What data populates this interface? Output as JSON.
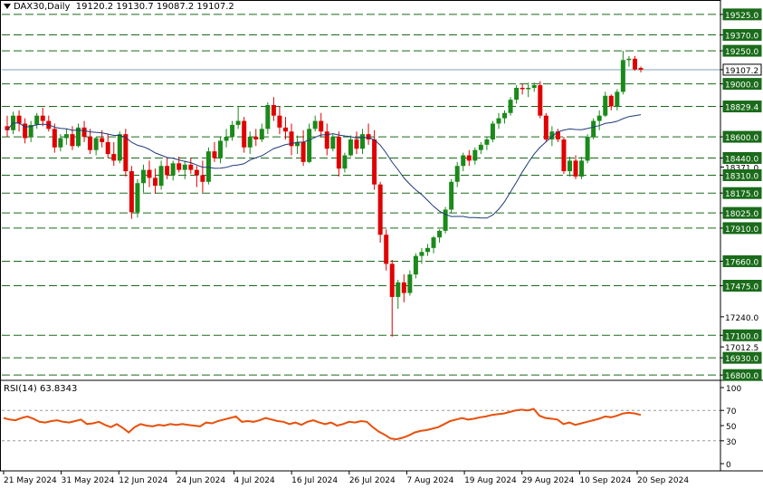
{
  "header": {
    "symbol": "DAX30,Daily",
    "open": "19120.2",
    "high": "19130.7",
    "low": "19087.2",
    "close": "19107.2"
  },
  "rsi_header": {
    "label": "RSI(14)",
    "value": "63.8343"
  },
  "colors": {
    "up": "#1a8a1a",
    "down": "#e00000",
    "ma": "#1f3a7a",
    "rsi": "#e8500a",
    "level_line": "#1a6b1a",
    "price_line": "#7f9fb0",
    "axis": "#000000"
  },
  "chart_data": [
    {
      "type": "candlestick",
      "title": "DAX30,Daily",
      "price_axis": {
        "range": [
          16760,
          19620
        ],
        "ticks": [
          "19525.0",
          "19370.0",
          "19250.0",
          "19107.2",
          "19000.0",
          "18829.4",
          "18600.0",
          "18440.0",
          "18371.0",
          "18310.0",
          "18175.0",
          "18025.0",
          "17910.0",
          "17660.0",
          "17475.0",
          "17240.0",
          "17100.0",
          "17012.5",
          "16930.0",
          "16800.0"
        ],
        "highlighted_ticks": [
          "19525.0",
          "19370.0",
          "19250.0",
          "19000.0",
          "18829.4",
          "18600.0",
          "18440.0",
          "18310.0",
          "18175.0",
          "18025.0",
          "17910.0",
          "17660.0",
          "17475.0",
          "17100.0",
          "16930.0",
          "16800.0"
        ],
        "current_price_tick": "19107.2"
      },
      "levels": [
        19525,
        19370,
        19250,
        19000,
        18829.4,
        18600,
        18440,
        18310,
        18175,
        18025,
        17910,
        17660,
        17475,
        17100,
        16930,
        16800
      ],
      "date_labels": [
        "21 May 2024",
        "31 May 2024",
        "12 Jun 2024",
        "24 Jun 2024",
        "4 Jul 2024",
        "16 Jul 2024",
        "26 Jul 2024",
        "7 Aug 2024",
        "19 Aug 2024",
        "29 Aug 2024",
        "10 Sep 2024",
        "20 Sep 2024"
      ],
      "ohlc": [
        [
          18680,
          18760,
          18600,
          18650
        ],
        [
          18650,
          18790,
          18620,
          18760
        ],
        [
          18760,
          18800,
          18640,
          18700
        ],
        [
          18700,
          18740,
          18550,
          18590
        ],
        [
          18600,
          18720,
          18560,
          18690
        ],
        [
          18690,
          18780,
          18660,
          18760
        ],
        [
          18760,
          18820,
          18680,
          18720
        ],
        [
          18720,
          18760,
          18640,
          18660
        ],
        [
          18660,
          18700,
          18480,
          18520
        ],
        [
          18520,
          18620,
          18490,
          18590
        ],
        [
          18590,
          18660,
          18540,
          18620
        ],
        [
          18620,
          18680,
          18500,
          18530
        ],
        [
          18530,
          18700,
          18520,
          18670
        ],
        [
          18670,
          18720,
          18560,
          18600
        ],
        [
          18600,
          18660,
          18470,
          18500
        ],
        [
          18500,
          18600,
          18460,
          18590
        ],
        [
          18590,
          18650,
          18520,
          18560
        ],
        [
          18560,
          18620,
          18440,
          18470
        ],
        [
          18470,
          18560,
          18380,
          18420
        ],
        [
          18420,
          18640,
          18400,
          18620
        ],
        [
          18620,
          18660,
          18300,
          18340
        ],
        [
          18340,
          18380,
          17980,
          18030
        ],
        [
          18030,
          18280,
          17990,
          18250
        ],
        [
          18250,
          18390,
          18180,
          18350
        ],
        [
          18350,
          18420,
          18220,
          18290
        ],
        [
          18290,
          18360,
          18170,
          18230
        ],
        [
          18230,
          18420,
          18200,
          18380
        ],
        [
          18380,
          18440,
          18280,
          18310
        ],
        [
          18310,
          18420,
          18270,
          18400
        ],
        [
          18400,
          18450,
          18330,
          18350
        ],
        [
          18350,
          18420,
          18280,
          18390
        ],
        [
          18390,
          18440,
          18320,
          18350
        ],
        [
          18350,
          18380,
          18220,
          18310
        ],
        [
          18310,
          18420,
          18180,
          18260
        ],
        [
          18260,
          18520,
          18240,
          18490
        ],
        [
          18490,
          18560,
          18410,
          18440
        ],
        [
          18440,
          18600,
          18400,
          18570
        ],
        [
          18570,
          18660,
          18520,
          18600
        ],
        [
          18600,
          18720,
          18570,
          18690
        ],
        [
          18690,
          18830,
          18660,
          18720
        ],
        [
          18720,
          18750,
          18480,
          18520
        ],
        [
          18520,
          18640,
          18470,
          18600
        ],
        [
          18600,
          18660,
          18530,
          18580
        ],
        [
          18580,
          18700,
          18560,
          18660
        ],
        [
          18660,
          18860,
          18620,
          18840
        ],
        [
          18840,
          18900,
          18720,
          18760
        ],
        [
          18760,
          18830,
          18620,
          18670
        ],
        [
          18670,
          18750,
          18580,
          18640
        ],
        [
          18640,
          18700,
          18460,
          18530
        ],
        [
          18530,
          18610,
          18470,
          18560
        ],
        [
          18560,
          18650,
          18380,
          18410
        ],
        [
          18410,
          18700,
          18400,
          18660
        ],
        [
          18660,
          18760,
          18640,
          18720
        ],
        [
          18720,
          18780,
          18600,
          18640
        ],
        [
          18640,
          18700,
          18460,
          18510
        ],
        [
          18510,
          18620,
          18490,
          18600
        ],
        [
          18600,
          18640,
          18300,
          18360
        ],
        [
          18360,
          18480,
          18330,
          18460
        ],
        [
          18460,
          18610,
          18450,
          18580
        ],
        [
          18580,
          18640,
          18470,
          18510
        ],
        [
          18510,
          18660,
          18470,
          18620
        ],
        [
          18620,
          18700,
          18540,
          18580
        ],
        [
          18580,
          18650,
          18200,
          18240
        ],
        [
          18240,
          18260,
          17800,
          17860
        ],
        [
          17860,
          17900,
          17590,
          17640
        ],
        [
          17640,
          17670,
          17090,
          17390
        ],
        [
          17390,
          17520,
          17300,
          17500
        ],
        [
          17500,
          17560,
          17350,
          17420
        ],
        [
          17420,
          17590,
          17400,
          17560
        ],
        [
          17560,
          17720,
          17530,
          17700
        ],
        [
          17700,
          17760,
          17640,
          17730
        ],
        [
          17730,
          17790,
          17700,
          17760
        ],
        [
          17760,
          17850,
          17720,
          17840
        ],
        [
          17840,
          17900,
          17800,
          17890
        ],
        [
          17890,
          18070,
          17870,
          18050
        ],
        [
          18050,
          18280,
          18020,
          18260
        ],
        [
          18260,
          18410,
          18220,
          18380
        ],
        [
          18380,
          18480,
          18340,
          18460
        ],
        [
          18460,
          18500,
          18380,
          18420
        ],
        [
          18420,
          18520,
          18390,
          18500
        ],
        [
          18500,
          18560,
          18470,
          18540
        ],
        [
          18540,
          18600,
          18500,
          18580
        ],
        [
          18580,
          18720,
          18560,
          18700
        ],
        [
          18700,
          18780,
          18660,
          18740
        ],
        [
          18740,
          18800,
          18700,
          18780
        ],
        [
          18780,
          18900,
          18760,
          18880
        ],
        [
          18880,
          18990,
          18850,
          18970
        ],
        [
          18970,
          19000,
          18920,
          18960
        ],
        [
          18960,
          19010,
          18900,
          18970
        ],
        [
          18970,
          19010,
          18940,
          18990
        ],
        [
          18990,
          19020,
          18740,
          18760
        ],
        [
          18760,
          18780,
          18560,
          18580
        ],
        [
          18580,
          18680,
          18530,
          18640
        ],
        [
          18640,
          18660,
          18560,
          18580
        ],
        [
          18580,
          18600,
          18320,
          18340
        ],
        [
          18340,
          18450,
          18300,
          18420
        ],
        [
          18420,
          18460,
          18280,
          18300
        ],
        [
          18300,
          18450,
          18280,
          18420
        ],
        [
          18420,
          18620,
          18400,
          18600
        ],
        [
          18600,
          18740,
          18580,
          18720
        ],
        [
          18720,
          18800,
          18650,
          18760
        ],
        [
          18760,
          18940,
          18750,
          18910
        ],
        [
          18910,
          18920,
          18800,
          18830
        ],
        [
          18830,
          18960,
          18800,
          18940
        ],
        [
          18940,
          19250,
          18920,
          19180
        ],
        [
          19180,
          19210,
          19130,
          19190
        ],
        [
          19190,
          19210,
          19100,
          19110
        ],
        [
          19120.2,
          19130.7,
          19087.2,
          19107.2
        ]
      ],
      "ma_period": 20
    },
    {
      "type": "line",
      "title": "RSI(14) 63.8343",
      "ylim": [
        0,
        100
      ],
      "ticks": [
        "100",
        "70",
        "50",
        "30",
        "0"
      ],
      "levels": [
        70,
        30
      ],
      "values": [
        60,
        58,
        57,
        60,
        62,
        59,
        55,
        54,
        56,
        57,
        55,
        54,
        56,
        58,
        52,
        53,
        55,
        51,
        48,
        52,
        47,
        41,
        48,
        52,
        50,
        49,
        51,
        50,
        52,
        51,
        52,
        51,
        50,
        49,
        54,
        53,
        56,
        58,
        60,
        62,
        55,
        56,
        55,
        57,
        60,
        58,
        56,
        55,
        52,
        54,
        51,
        55,
        57,
        54,
        52,
        54,
        50,
        52,
        55,
        54,
        56,
        55,
        48,
        42,
        38,
        33,
        32,
        34,
        37,
        41,
        43,
        44,
        46,
        48,
        52,
        56,
        58,
        60,
        58,
        59,
        61,
        62,
        64,
        65,
        66,
        68,
        70,
        71,
        70,
        72,
        63,
        60,
        59,
        58,
        52,
        54,
        51,
        53,
        55,
        57,
        59,
        62,
        61,
        63,
        66,
        67,
        66,
        64
      ]
    }
  ]
}
